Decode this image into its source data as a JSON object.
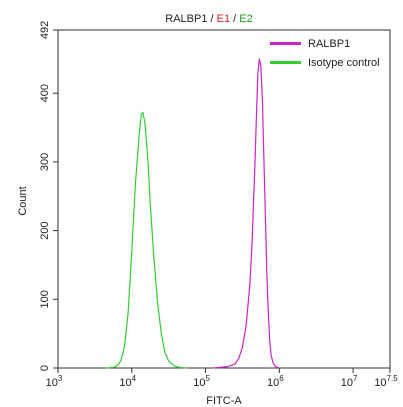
{
  "chart_data": {
    "type": "line",
    "title_parts": [
      {
        "text": "RALBP1",
        "color": "#222222"
      },
      {
        "text": " / ",
        "color": "#222222"
      },
      {
        "text": "E1",
        "color": "#d62020"
      },
      {
        "text": " / ",
        "color": "#222222"
      },
      {
        "text": "E2",
        "color": "#1a9a1a"
      }
    ],
    "xlabel": "FITC-A",
    "ylabel": "Count",
    "x_scale": "log",
    "xlim": [
      1000,
      31622776
    ],
    "ylim": [
      0,
      492
    ],
    "x_ticks": [
      {
        "value": 1000,
        "base": "10",
        "exp": "3"
      },
      {
        "value": 10000,
        "base": "10",
        "exp": "4"
      },
      {
        "value": 100000,
        "base": "10",
        "exp": "5"
      },
      {
        "value": 1000000,
        "base": "10",
        "exp": "6"
      },
      {
        "value": 10000000,
        "base": "10",
        "exp": "7"
      },
      {
        "value": 31622776,
        "base": "10",
        "exp": "7.5"
      }
    ],
    "y_ticks": [
      {
        "value": 0,
        "label": "0"
      },
      {
        "value": 100,
        "label": "100"
      },
      {
        "value": 200,
        "label": "200"
      },
      {
        "value": 300,
        "label": "300"
      },
      {
        "value": 400,
        "label": "400"
      },
      {
        "value": 492,
        "label": "492"
      }
    ],
    "legend_position": "top-right",
    "series": [
      {
        "name": "RALBP1",
        "color": "#cc22cc",
        "points": [
          [
            125900,
            0
          ],
          [
            158500,
            1
          ],
          [
            199500,
            2
          ],
          [
            251200,
            6
          ],
          [
            281800,
            14
          ],
          [
            316200,
            30
          ],
          [
            354800,
            62
          ],
          [
            398100,
            120
          ],
          [
            426600,
            180
          ],
          [
            446700,
            240
          ],
          [
            467700,
            300
          ],
          [
            489800,
            370
          ],
          [
            512900,
            430
          ],
          [
            537000,
            450
          ],
          [
            562300,
            438
          ],
          [
            588800,
            390
          ],
          [
            616600,
            310
          ],
          [
            646800,
            220
          ],
          [
            676100,
            140
          ],
          [
            707900,
            80
          ],
          [
            741300,
            40
          ],
          [
            776200,
            18
          ],
          [
            831800,
            6
          ],
          [
            891300,
            2
          ],
          [
            1000000,
            0
          ]
        ]
      },
      {
        "name": "Isotype control",
        "color": "#33cc33",
        "points": [
          [
            4467,
            0
          ],
          [
            5623,
            1
          ],
          [
            6310,
            3
          ],
          [
            7079,
            10
          ],
          [
            7943,
            30
          ],
          [
            8913,
            80
          ],
          [
            10000,
            170
          ],
          [
            11220,
            270
          ],
          [
            12590,
            340
          ],
          [
            13490,
            370
          ],
          [
            14130,
            372
          ],
          [
            15140,
            355
          ],
          [
            16600,
            300
          ],
          [
            17780,
            240
          ],
          [
            19950,
            160
          ],
          [
            22390,
            95
          ],
          [
            25120,
            50
          ],
          [
            28180,
            22
          ],
          [
            31620,
            10
          ],
          [
            37580,
            3
          ],
          [
            44670,
            1
          ],
          [
            56230,
            0
          ]
        ]
      }
    ]
  }
}
